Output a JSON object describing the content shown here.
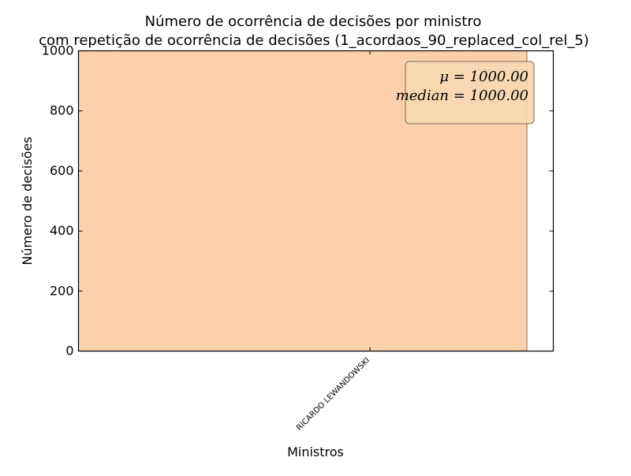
{
  "chart_data": {
    "type": "bar",
    "title_lines": [
      "Número de ocorrência de decisões por ministro",
      "com repetição de ocorrência de decisões (1_acordaos_90_replaced_col_rel_5)"
    ],
    "xlabel": "Ministros",
    "ylabel": "Número de decisões",
    "categories": [
      "RICARDO LEWANDOWSKI"
    ],
    "values": [
      1000
    ],
    "ylim": [
      0,
      1000
    ],
    "yticks": [
      0,
      200,
      400,
      600,
      800,
      1000
    ],
    "ytick_labels": [
      "0",
      "200",
      "400",
      "600",
      "800",
      "1000"
    ],
    "grid": false,
    "bar_color": "#fdd0ac",
    "stats_box": {
      "mu_label": "μ = 1000.00",
      "median_label": "median = 1000.00",
      "placement": "top-right",
      "box_color": "#f6d8b2"
    }
  }
}
